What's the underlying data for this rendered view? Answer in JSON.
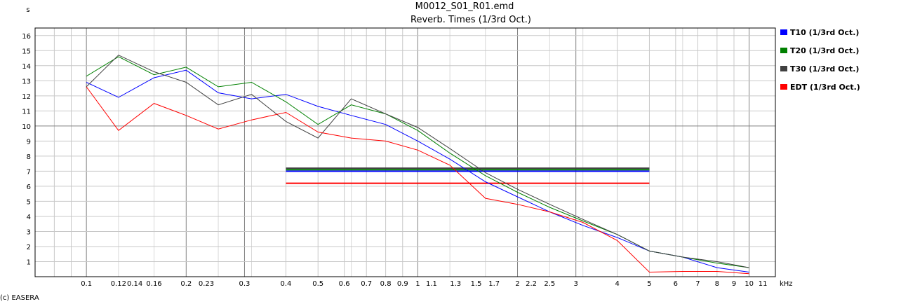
{
  "chart_data": {
    "type": "line",
    "title": "M0012_S01_R01.emd",
    "subtitle": "Reverb. Times (1/3rd Oct.)",
    "ylabel": "s",
    "xunit": "kHz",
    "x_scale": "log",
    "xlim": [
      0.07,
      12
    ],
    "ylim": [
      0,
      16.5
    ],
    "y_ticks": [
      "1",
      "2",
      "3",
      "4",
      "5",
      "6",
      "7",
      "8",
      "9",
      "10",
      "11",
      "12",
      "13",
      "14",
      "15",
      "16"
    ],
    "x_ticks": [
      {
        "v": 0.1,
        "label": "0.1"
      },
      {
        "v": 0.125,
        "label": "0.12"
      },
      {
        "v": 0.14,
        "label": "0.14"
      },
      {
        "v": 0.16,
        "label": "0.16"
      },
      {
        "v": 0.2,
        "label": "0.2"
      },
      {
        "v": 0.23,
        "label": "0.23"
      },
      {
        "v": 0.3,
        "label": "0.3"
      },
      {
        "v": 0.4,
        "label": "0.4"
      },
      {
        "v": 0.5,
        "label": "0.5"
      },
      {
        "v": 0.6,
        "label": "0.6"
      },
      {
        "v": 0.7,
        "label": "0.7"
      },
      {
        "v": 0.8,
        "label": "0.8"
      },
      {
        "v": 0.9,
        "label": "0.9"
      },
      {
        "v": 1,
        "label": "1"
      },
      {
        "v": 1.1,
        "label": "1.1"
      },
      {
        "v": 1.3,
        "label": "1.3"
      },
      {
        "v": 1.5,
        "label": "1.5"
      },
      {
        "v": 1.7,
        "label": "1.7"
      },
      {
        "v": 2,
        "label": "2"
      },
      {
        "v": 2.2,
        "label": "2.2"
      },
      {
        "v": 2.5,
        "label": "2.5"
      },
      {
        "v": 3,
        "label": "3"
      },
      {
        "v": 4,
        "label": "4"
      },
      {
        "v": 5,
        "label": "5"
      },
      {
        "v": 6,
        "label": "6"
      },
      {
        "v": 7,
        "label": "7"
      },
      {
        "v": 8,
        "label": "8"
      },
      {
        "v": 9,
        "label": "9"
      },
      {
        "v": 10,
        "label": "10"
      },
      {
        "v": 11,
        "label": "11"
      }
    ],
    "x": [
      0.1,
      0.125,
      0.16,
      0.2,
      0.25,
      0.315,
      0.4,
      0.5,
      0.63,
      0.8,
      1,
      1.25,
      1.6,
      2,
      2.5,
      3.15,
      4,
      5,
      6.3,
      8,
      10
    ],
    "series": [
      {
        "name": "T10 (1/3rd Oct.)",
        "color": "#0000ff",
        "values": [
          12.9,
          11.9,
          13.2,
          13.7,
          12.2,
          11.8,
          12.1,
          11.3,
          10.7,
          10.1,
          9.0,
          7.8,
          6.3,
          5.3,
          4.3,
          3.4,
          2.6,
          1.7,
          1.3,
          0.6,
          0.3
        ],
        "average": 7.0
      },
      {
        "name": "T20 (1/3rd Oct.)",
        "color": "#008000",
        "values": [
          13.3,
          14.6,
          13.4,
          13.9,
          12.6,
          12.9,
          11.6,
          10.1,
          11.4,
          10.8,
          9.7,
          8.2,
          6.7,
          5.6,
          4.6,
          3.7,
          2.8,
          1.7,
          1.3,
          0.9,
          0.6
        ],
        "average": 7.1
      },
      {
        "name": "T30 (1/3rd Oct.)",
        "color": "#404040",
        "values": [
          12.6,
          14.7,
          13.6,
          12.9,
          11.4,
          12.1,
          10.3,
          9.2,
          11.8,
          10.8,
          9.9,
          8.5,
          6.9,
          5.8,
          4.8,
          3.8,
          2.8,
          1.7,
          1.3,
          1.0,
          0.6
        ],
        "average": 7.2
      },
      {
        "name": "EDT (1/3rd Oct.)",
        "color": "#ff0000",
        "values": [
          12.6,
          9.7,
          11.5,
          10.7,
          9.8,
          10.4,
          10.9,
          9.6,
          9.2,
          9.0,
          8.4,
          7.4,
          5.2,
          4.8,
          4.3,
          3.6,
          2.4,
          0.3,
          0.35,
          0.35,
          0.2
        ],
        "average": 6.2
      }
    ],
    "average_range": [
      0.4,
      5
    ],
    "grid": true,
    "legend_position": "right"
  },
  "footer": {
    "copyright": "(c) EASERA"
  }
}
